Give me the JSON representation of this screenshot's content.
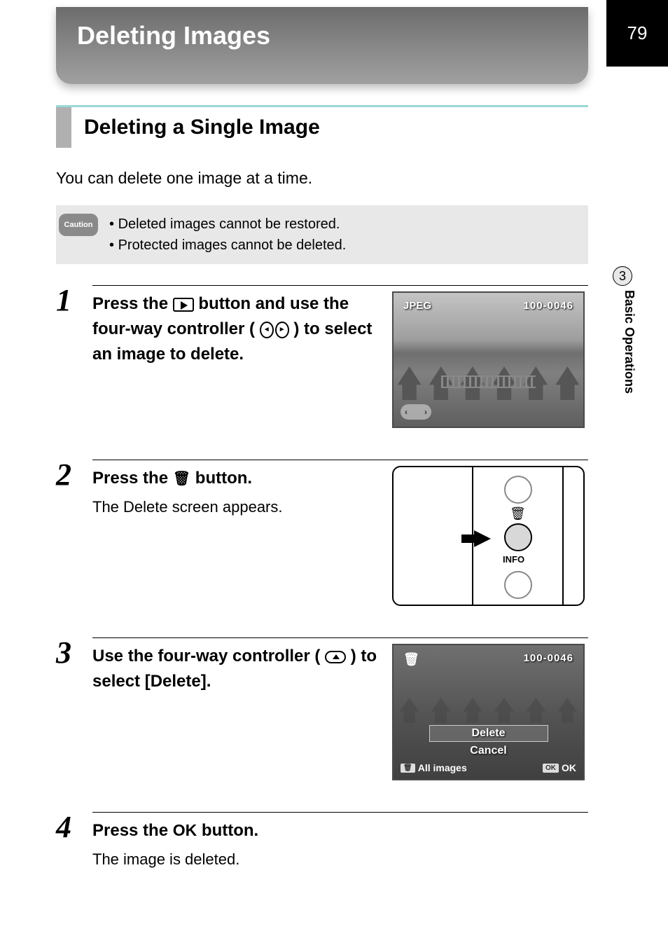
{
  "page_number": "79",
  "side_tab": {
    "chapter_number": "3",
    "chapter_title": "Basic Operations"
  },
  "title": "Deleting Images",
  "section_heading": "Deleting a Single Image",
  "intro": "You can delete one image at a time.",
  "caution": {
    "badge": "Caution",
    "items": [
      "Deleted images cannot be restored.",
      "Protected images cannot be deleted."
    ]
  },
  "steps": {
    "s1": {
      "num": "1",
      "text_parts": {
        "a": "Press the ",
        "b": " button and use the four-way controller (",
        "c": ") to select an image to delete."
      },
      "screen": {
        "format": "JPEG",
        "file_no": "100-0046"
      }
    },
    "s2": {
      "num": "2",
      "text_parts": {
        "a": "Press the ",
        "b": " button."
      },
      "sub": "The Delete screen appears.",
      "panel": {
        "info_label": "INFO"
      }
    },
    "s3": {
      "num": "3",
      "text_parts": {
        "a": "Use the four-way controller (",
        "b": ") to select [Delete]."
      },
      "screen": {
        "file_no": "100-0046",
        "opt_delete": "Delete",
        "opt_cancel": "Cancel",
        "all_images": "All images",
        "ok_badge": "OK",
        "ok_text": "OK",
        "trash_badge": "🗑"
      }
    },
    "s4": {
      "num": "4",
      "text_parts": {
        "a": "Press the ",
        "b": "OK",
        "c": " button."
      },
      "sub": "The image is deleted."
    }
  }
}
